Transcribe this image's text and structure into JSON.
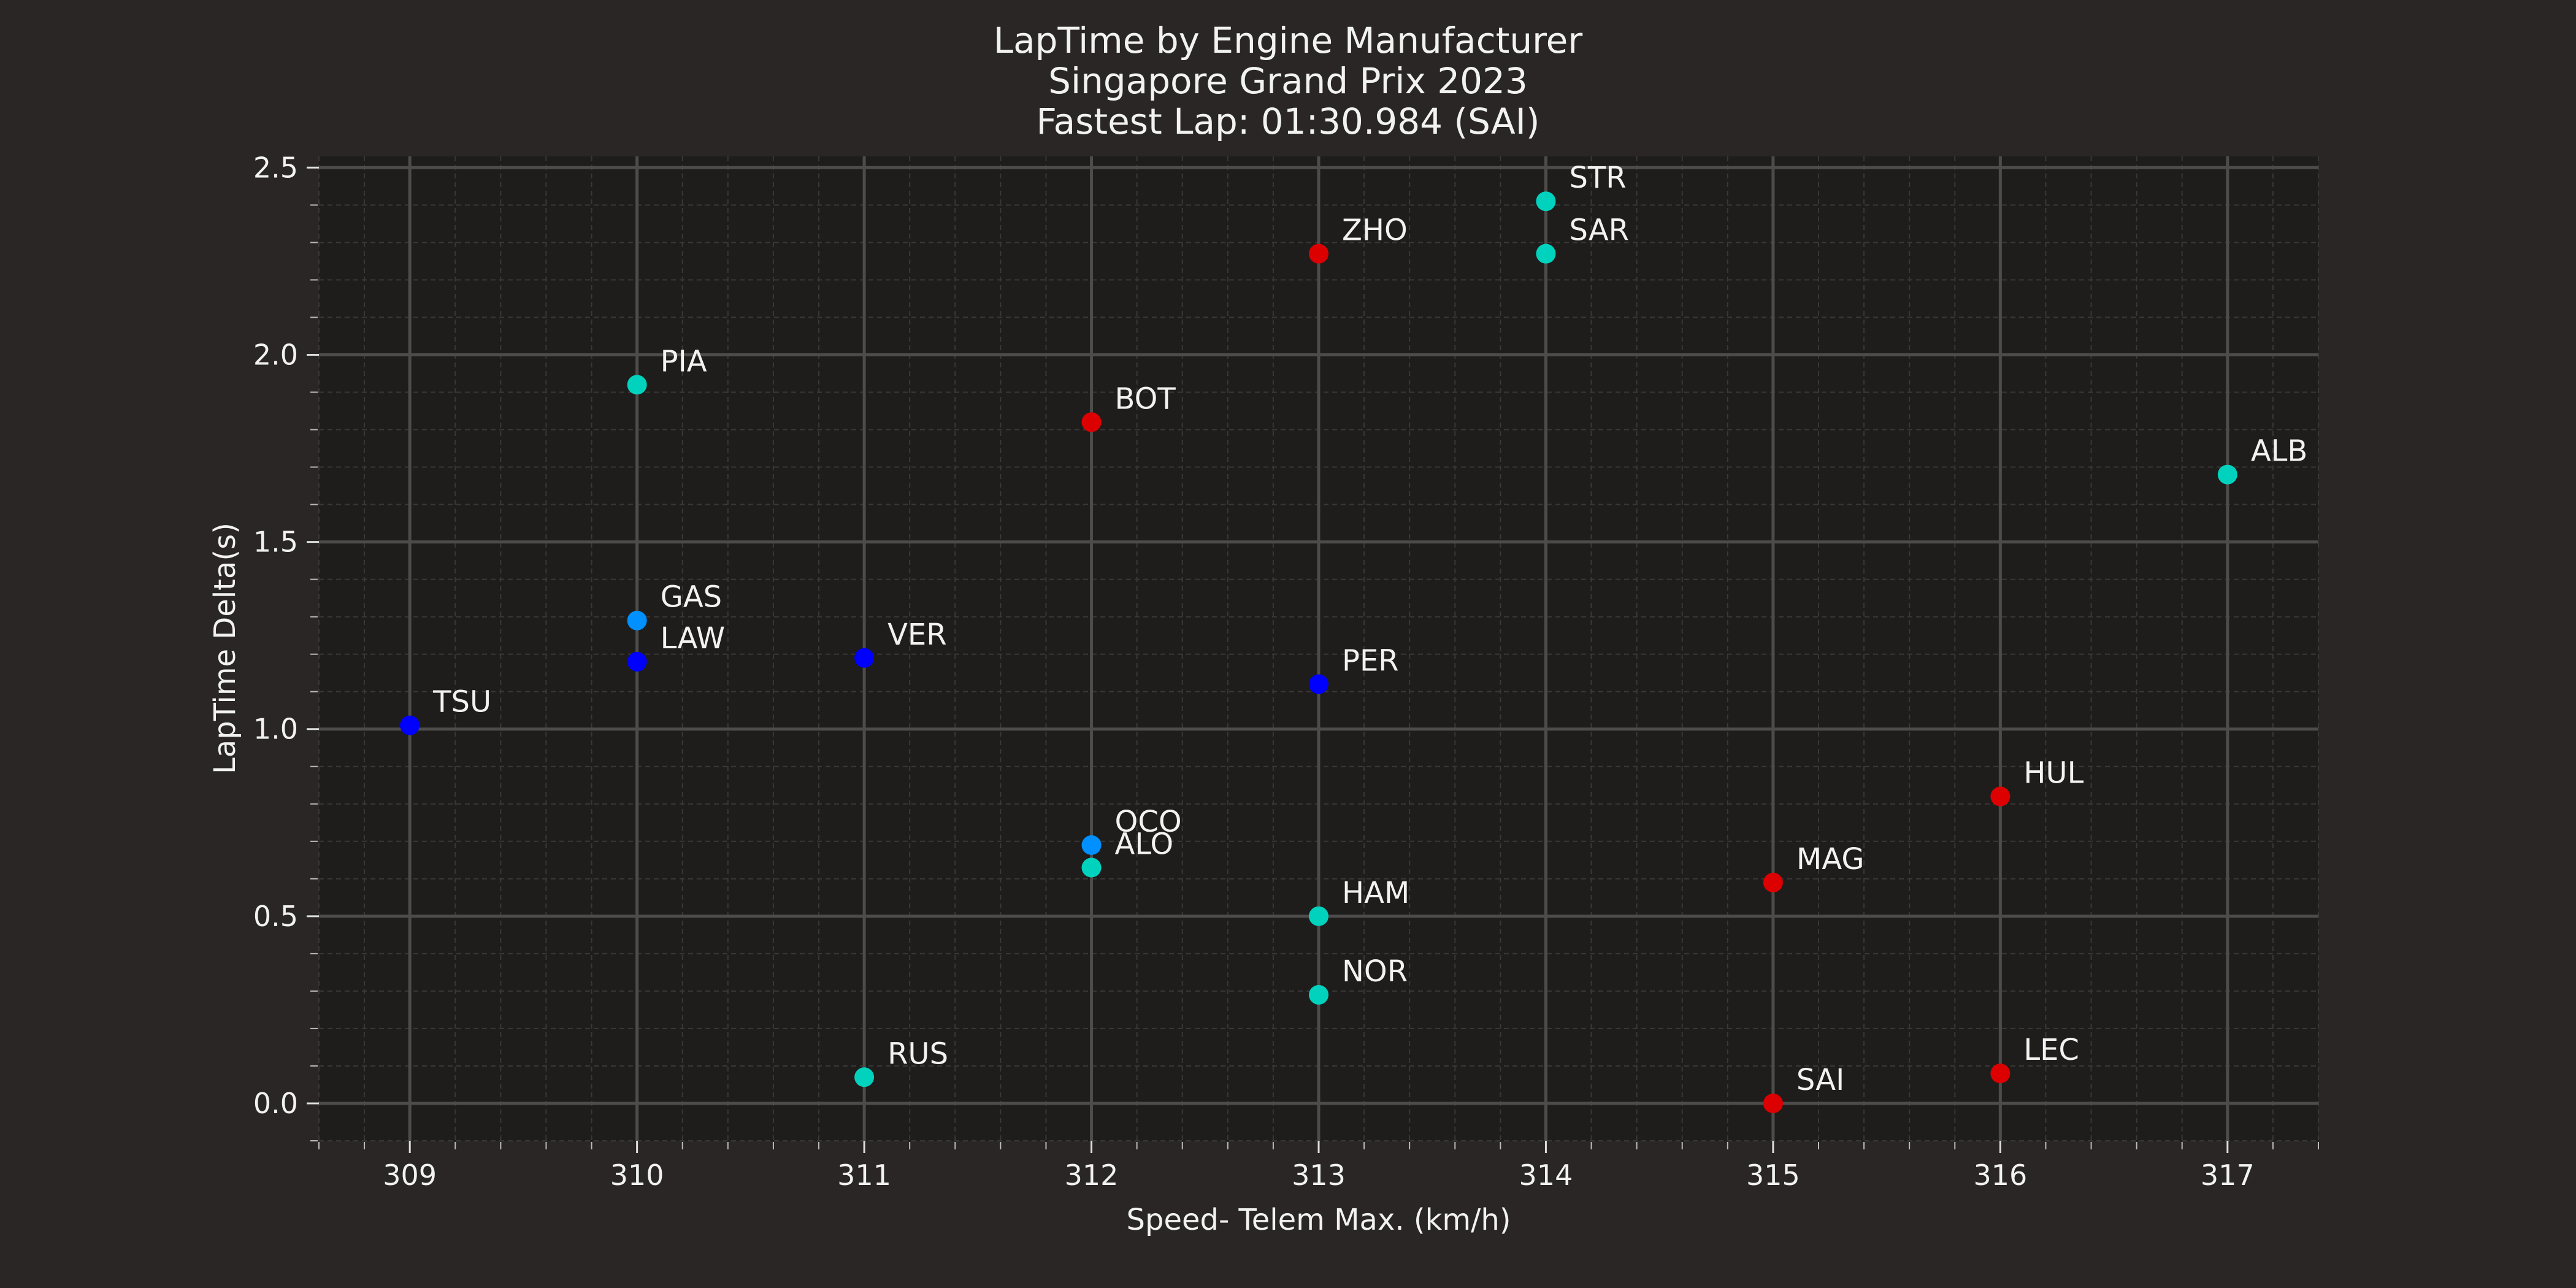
{
  "chart_data": {
    "type": "scatter",
    "title": "LapTime by Engine Manufacturer",
    "subtitle": "Singapore Grand Prix 2023",
    "subtitle2": "Fastest Lap: 01:30.984 (SAI)",
    "xlabel": "Speed- Telem Max. (km/h)",
    "ylabel": "LapTime Delta(s)",
    "xlim": [
      308.6,
      317.4
    ],
    "ylim": [
      -0.1,
      2.53
    ],
    "xticks": [
      "309",
      "310",
      "311",
      "312",
      "313",
      "314",
      "315",
      "316",
      "317"
    ],
    "yticks": [
      "0.0",
      "0.5",
      "1.0",
      "1.5",
      "2.0",
      "2.5"
    ],
    "grid": true,
    "colors": {
      "background": "#292625",
      "plot_background": "#1e1d1c",
      "grid_major": "#4e4c4a",
      "grid_minor": "#3a3836",
      "text": "#f2f2f2"
    },
    "points": [
      {
        "label": "TSU",
        "x": 309,
        "y": 1.01,
        "color": "#0000ff"
      },
      {
        "label": "PIA",
        "x": 310,
        "y": 1.92,
        "color": "#00d2be"
      },
      {
        "label": "GAS",
        "x": 310,
        "y": 1.29,
        "color": "#0090ff"
      },
      {
        "label": "LAW",
        "x": 310,
        "y": 1.18,
        "color": "#0000ff"
      },
      {
        "label": "VER",
        "x": 311,
        "y": 1.19,
        "color": "#0000ff"
      },
      {
        "label": "RUS",
        "x": 311,
        "y": 0.07,
        "color": "#00d2be"
      },
      {
        "label": "BOT",
        "x": 312,
        "y": 1.82,
        "color": "#dc0000"
      },
      {
        "label": "OCO",
        "x": 312,
        "y": 0.69,
        "color": "#0090ff"
      },
      {
        "label": "ALO",
        "x": 312,
        "y": 0.63,
        "color": "#00d2be"
      },
      {
        "label": "ZHO",
        "x": 313,
        "y": 2.27,
        "color": "#dc0000"
      },
      {
        "label": "PER",
        "x": 313,
        "y": 1.12,
        "color": "#0000ff"
      },
      {
        "label": "HAM",
        "x": 313,
        "y": 0.5,
        "color": "#00d2be"
      },
      {
        "label": "NOR",
        "x": 313,
        "y": 0.29,
        "color": "#00d2be"
      },
      {
        "label": "STR",
        "x": 314,
        "y": 2.41,
        "color": "#00d2be"
      },
      {
        "label": "SAR",
        "x": 314,
        "y": 2.27,
        "color": "#00d2be"
      },
      {
        "label": "MAG",
        "x": 315,
        "y": 0.59,
        "color": "#dc0000"
      },
      {
        "label": "SAI",
        "x": 315,
        "y": 0.0,
        "color": "#dc0000"
      },
      {
        "label": "HUL",
        "x": 316,
        "y": 0.82,
        "color": "#dc0000"
      },
      {
        "label": "LEC",
        "x": 316,
        "y": 0.08,
        "color": "#dc0000"
      },
      {
        "label": "ALB",
        "x": 317,
        "y": 1.68,
        "color": "#00d2be"
      }
    ]
  }
}
